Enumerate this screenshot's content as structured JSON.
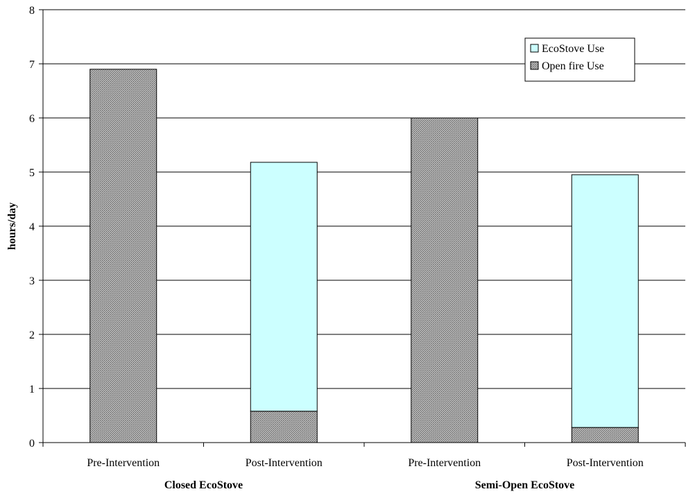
{
  "chart_data": {
    "type": "bar",
    "stacked": true,
    "ylabel": "hours/day",
    "xlabel": "",
    "ylim": [
      0,
      8
    ],
    "yticks": [
      0,
      1,
      2,
      3,
      4,
      5,
      6,
      7,
      8
    ],
    "grid": true,
    "legend_position": "top-right",
    "categories": [
      "Pre-Intervention",
      "Post-Intervention",
      "Pre-Intervention",
      "Post-Intervention"
    ],
    "groups": [
      {
        "label": "Closed EcoStove",
        "categories": [
          0,
          1
        ]
      },
      {
        "label": "Semi-Open EcoStove",
        "categories": [
          2,
          3
        ]
      }
    ],
    "series": [
      {
        "name": "Open fire Use",
        "values": [
          6.9,
          0.58,
          6.0,
          0.28
        ],
        "color": "#999999",
        "pattern": "dotted-gray"
      },
      {
        "name": "EcoStove Use",
        "values": [
          0,
          4.6,
          0,
          4.67
        ],
        "color": "#ccffff"
      }
    ]
  }
}
